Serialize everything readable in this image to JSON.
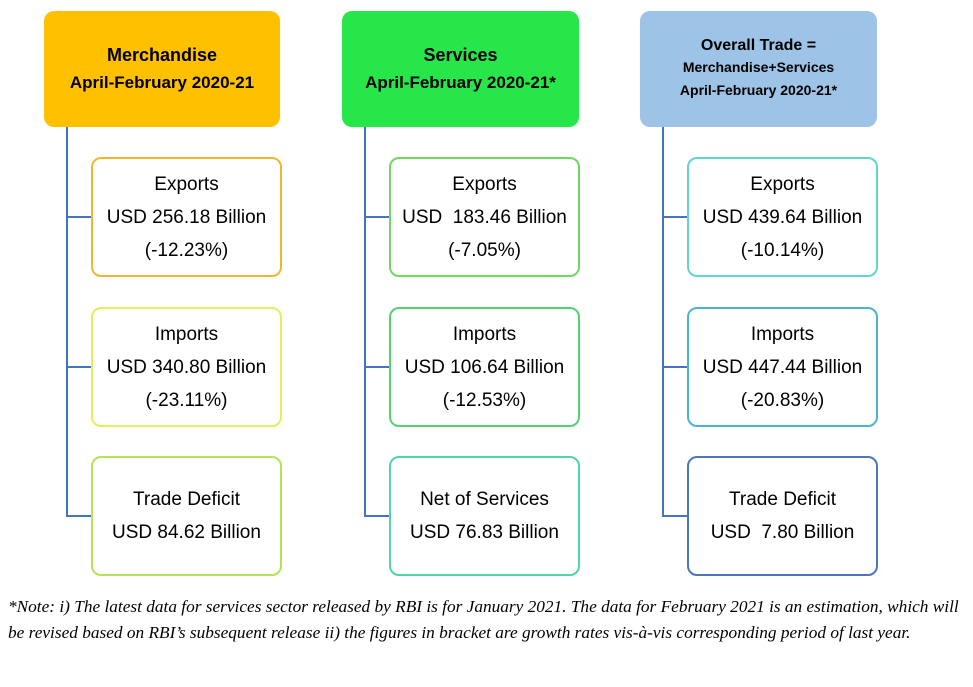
{
  "columns": [
    {
      "header": {
        "line1": "Merchandise",
        "line2": "April-February 2020-21",
        "color": "#ffc000"
      },
      "boxes": [
        {
          "label": "Exports",
          "value": "USD 256.18 Billion",
          "growth": "(-12.23%)",
          "border": "#f2b632"
        },
        {
          "label": "Imports",
          "value": "USD 340.80 Billion",
          "growth": "(-23.11%)",
          "border": "#e3ee5a"
        },
        {
          "label": "Trade Deficit",
          "value": "USD 84.62 Billion",
          "growth": "",
          "border": "#b4e35a"
        }
      ]
    },
    {
      "header": {
        "line1": "Services",
        "line2": "April-February 2020-21*",
        "color": "#27e64a"
      },
      "boxes": [
        {
          "label": "Exports",
          "value": "USD  183.46 Billion",
          "growth": "(-7.05%)",
          "border": "#6fd85f"
        },
        {
          "label": "Imports",
          "value": "USD 106.64 Billion",
          "growth": "(-12.53%)",
          "border": "#52d36f"
        },
        {
          "label": "Net of Services",
          "value": "USD 76.83 Billion",
          "growth": "",
          "border": "#4fd6a5"
        }
      ]
    },
    {
      "header": {
        "line1": "Overall Trade =",
        "line2": "Merchandise+Services",
        "line3": "April-February 2020-21*",
        "color": "#9dc3e6"
      },
      "boxes": [
        {
          "label": "Exports",
          "value": "USD 439.64 Billion",
          "growth": "(-10.14%)",
          "border": "#5fd6d0"
        },
        {
          "label": "Imports",
          "value": "USD 447.44 Billion",
          "growth": "(-20.83%)",
          "border": "#4bb5cf"
        },
        {
          "label": "Trade Deficit",
          "value": "USD  7.80 Billion",
          "growth": "",
          "border": "#4a78c0"
        }
      ]
    }
  ],
  "note": "*Note: i) The latest data for services sector released by RBI is for January 2021. The data for February 2021 is an estimation, which will be revised based on RBI’s subsequent release ii) the figures in bracket are growth rates vis-à-vis corresponding period of last year."
}
